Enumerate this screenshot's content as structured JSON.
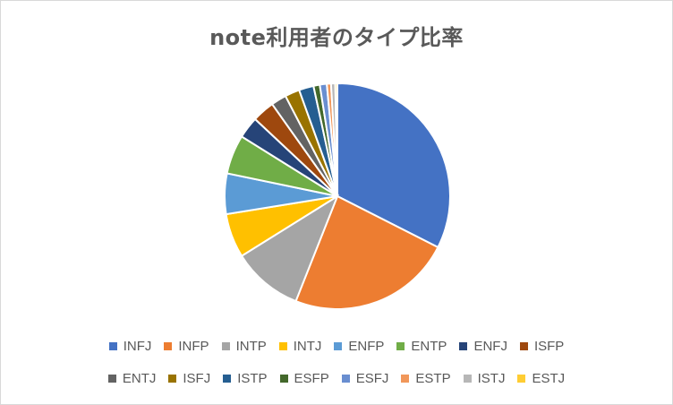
{
  "chart_data": {
    "type": "pie",
    "title": "note利用者のタイプ比率",
    "categories": [
      "INFJ",
      "INFP",
      "INTP",
      "INTJ",
      "ENFP",
      "ENTP",
      "ENFJ",
      "ISFP",
      "ENTJ",
      "ISFJ",
      "ISTP",
      "ESFP",
      "ESFJ",
      "ESTP",
      "ISTJ",
      "ESTJ"
    ],
    "values": [
      32.4,
      23.5,
      10.1,
      6.3,
      5.8,
      5.6,
      3.1,
      3.2,
      2.2,
      2.1,
      2.1,
      0.9,
      1.0,
      0.6,
      0.6,
      0.3
    ],
    "unit": "%",
    "start_angle": "12 o'clock, clockwise",
    "legend_position": "bottom",
    "colors": [
      "#4472c4",
      "#ed7d31",
      "#a5a5a5",
      "#ffc000",
      "#5b9bd5",
      "#70ad47",
      "#264478",
      "#9e480e",
      "#636363",
      "#997300",
      "#255e91",
      "#43682b",
      "#698ed0",
      "#f1975a",
      "#b7b7b7",
      "#ffcd33"
    ]
  },
  "legend": {
    "row1": [
      {
        "label": "INFJ",
        "color": "#4472c4"
      },
      {
        "label": "INFP",
        "color": "#ed7d31"
      },
      {
        "label": "INTP",
        "color": "#a5a5a5"
      },
      {
        "label": "INTJ",
        "color": "#ffc000"
      },
      {
        "label": "ENFP",
        "color": "#5b9bd5"
      },
      {
        "label": "ENTP",
        "color": "#70ad47"
      },
      {
        "label": "ENFJ",
        "color": "#264478"
      },
      {
        "label": "ISFP",
        "color": "#9e480e"
      }
    ],
    "row2": [
      {
        "label": "ENTJ",
        "color": "#636363"
      },
      {
        "label": "ISFJ",
        "color": "#997300"
      },
      {
        "label": "ISTP",
        "color": "#255e91"
      },
      {
        "label": "ESFP",
        "color": "#43682b"
      },
      {
        "label": "ESFJ",
        "color": "#698ed0"
      },
      {
        "label": "ESTP",
        "color": "#f1975a"
      },
      {
        "label": "ISTJ",
        "color": "#b7b7b7"
      },
      {
        "label": "ESTJ",
        "color": "#ffcd33"
      }
    ]
  }
}
